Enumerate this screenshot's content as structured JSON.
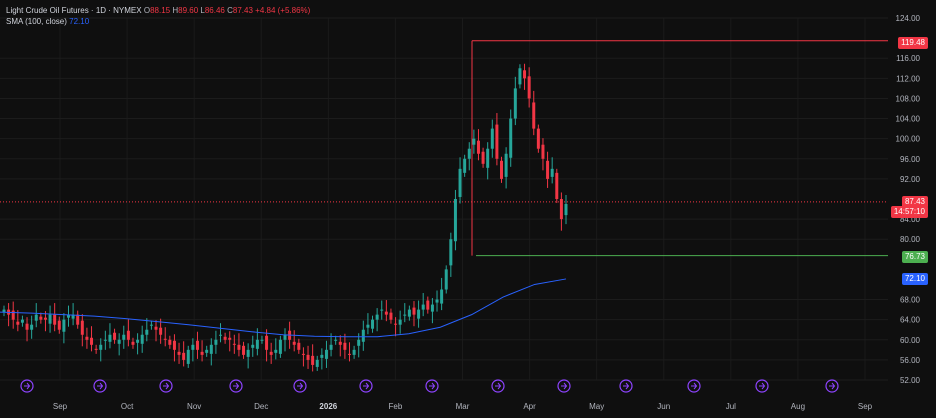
{
  "legend": {
    "title": "Light Crude Oil Futures · 1D · NYMEX",
    "o_label": "O",
    "o_value": "88.15",
    "h_label": "H",
    "h_value": "89.60",
    "l_label": "L",
    "l_value": "86.46",
    "c_label": "C",
    "c_value": "87.43",
    "change": "+4.84 (+5.86%)",
    "sma_label": "SMA (100, close)",
    "sma_value": "72.10"
  },
  "price_axis": {
    "ticks": [
      "124.00",
      "116.00",
      "112.00",
      "108.00",
      "104.00",
      "100.00",
      "96.00",
      "92.00",
      "84.00",
      "80.00",
      "68.00",
      "64.00",
      "60.00",
      "56.00",
      "52.00"
    ],
    "tag_high": "119.48",
    "tag_last": "87.43",
    "tag_countdown": "14:57:10",
    "tag_low": "76.73",
    "tag_sma": "72.10"
  },
  "time_axis": {
    "labels": [
      "Sep",
      "Oct",
      "Nov",
      "Dec",
      "2026",
      "Feb",
      "Mar",
      "Apr",
      "May",
      "Jun",
      "Jul",
      "Aug",
      "Sep"
    ]
  },
  "colors": {
    "up": "#26a69a",
    "down": "#f23645",
    "sma": "#2962ff",
    "high_box": "#f23645",
    "low_line": "#4caf50",
    "event": "#8e44ff"
  },
  "chart_data": {
    "type": "candlestick",
    "symbol": "Light Crude Oil Futures",
    "interval": "1D",
    "ylim": [
      52,
      124
    ],
    "levels": {
      "high": 119.48,
      "low": 76.73,
      "last": 87.43,
      "sma": 72.1
    },
    "sma_series": [
      65.5,
      65.3,
      65.0,
      64.7,
      64.2,
      63.6,
      63.0,
      62.3,
      61.6,
      61.0,
      60.7,
      60.6,
      60.6,
      61.2,
      62.5,
      65.0,
      68.5,
      71.0,
      72.1
    ],
    "closes": [
      66,
      65,
      64,
      63,
      64,
      62,
      63,
      65,
      64,
      64,
      65,
      63,
      62,
      64,
      65,
      65,
      63,
      61,
      60,
      59,
      58,
      59,
      60,
      61,
      60,
      60,
      61,
      60,
      59,
      60,
      61,
      62,
      63,
      62,
      61,
      60,
      59,
      58,
      57,
      56,
      58,
      59,
      58,
      57,
      58,
      59,
      60,
      61,
      60,
      60,
      59,
      58,
      57,
      58,
      59,
      60,
      60,
      58,
      57,
      58,
      60,
      61,
      60,
      59,
      58,
      57,
      56,
      55,
      56,
      57,
      58,
      59,
      60,
      59,
      58,
      57,
      58,
      60,
      62,
      63,
      64,
      65,
      66,
      65,
      64,
      63,
      64,
      65,
      66,
      65,
      66,
      67,
      66,
      67,
      68,
      70,
      74,
      80,
      88,
      94,
      96,
      98,
      100,
      97,
      95,
      98,
      102,
      96,
      92,
      97,
      104,
      110,
      114,
      112,
      108,
      102,
      98,
      96,
      92,
      94,
      88,
      84,
      87
    ]
  },
  "event_markers": [
    "event-icon",
    "event-icon",
    "event-icon",
    "event-icon",
    "event-icon",
    "event-icon",
    "event-icon",
    "event-icon",
    "event-icon",
    "event-icon",
    "event-icon",
    "event-icon",
    "event-icon",
    "event-icon",
    "event-icon"
  ]
}
